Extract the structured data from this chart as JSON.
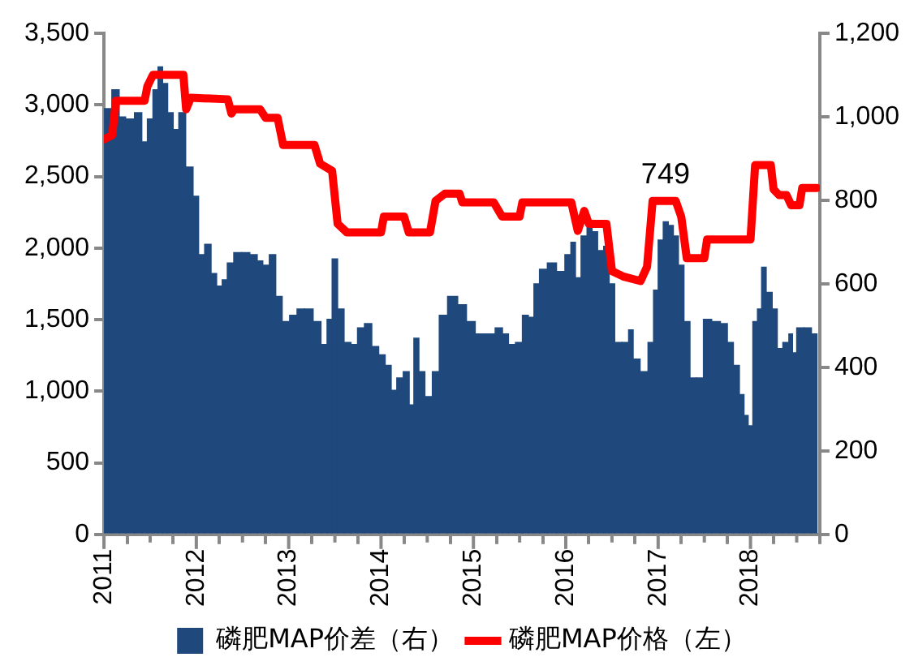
{
  "chart_data": {
    "type": "bar",
    "xlim": [
      2011,
      2018.75
    ],
    "xticks": [
      2011,
      {
        "value": 2011.5,
        "label": null
      },
      2012,
      {
        "value": 2012.5,
        "label": null
      },
      2013,
      {
        "value": 2013.5,
        "label": null
      },
      2014,
      {
        "value": 2014.5,
        "label": null
      },
      2015,
      {
        "value": 2015.5,
        "label": null
      },
      2016,
      {
        "value": 2016.5,
        "label": null
      },
      2017,
      {
        "value": 2017.5,
        "label": null
      },
      2018,
      {
        "value": 2018.5,
        "label": null
      }
    ],
    "ylim": [
      0,
      3500
    ],
    "yticks": [
      0,
      500,
      {
        "value": 1000,
        "label": "1,000"
      },
      {
        "value": 1500,
        "label": "1,500"
      },
      {
        "value": 2000,
        "label": "2,000"
      },
      {
        "value": 2500,
        "label": "2,500"
      },
      {
        "value": 3000,
        "label": "3,000"
      },
      {
        "value": 3500,
        "label": "3,500"
      }
    ],
    "y2lim": [
      0,
      1200
    ],
    "y2ticks": [
      0,
      200,
      400,
      600,
      800,
      {
        "value": 1000,
        "label": "1,000"
      },
      {
        "value": 1200,
        "label": "1,200"
      }
    ],
    "legend": "bottom",
    "grid": false,
    "annotations": [
      {
        "text": "749",
        "x": 2017.08,
        "y": 2330
      }
    ],
    "series": [
      {
        "name": "磷肥MAP价差（右）",
        "axis": "y2",
        "color": "#1f497d",
        "x": [
          2011.03,
          2011.14,
          2011.19,
          2011.28,
          2011.38,
          2011.44,
          2011.5,
          2011.56,
          2011.61,
          2011.66,
          2011.72,
          2011.78,
          2011.84,
          2011.93,
          2012.0,
          2012.05,
          2012.13,
          2012.19,
          2012.25,
          2012.31,
          2012.36,
          2012.45,
          2012.53,
          2012.63,
          2012.69,
          2012.75,
          2012.83,
          2012.89,
          2012.97,
          2013.05,
          2013.13,
          2013.22,
          2013.31,
          2013.39,
          2013.44,
          2013.5,
          2013.56,
          2013.64,
          2013.71,
          2013.78,
          2013.86,
          2013.94,
          2014.01,
          2014.08,
          2014.14,
          2014.2,
          2014.28,
          2014.33,
          2014.38,
          2014.44,
          2014.51,
          2014.6,
          2014.66,
          2014.78,
          2014.88,
          2014.97,
          2015.07,
          2015.19,
          2015.28,
          2015.35,
          2015.41,
          2015.5,
          2015.56,
          2015.63,
          2015.68,
          2015.75,
          2015.85,
          2015.95,
          2016.03,
          2016.08,
          2016.13,
          2016.2,
          2016.26,
          2016.31,
          2016.38,
          2016.44,
          2016.5,
          2016.56,
          2016.66,
          2016.7,
          2016.76,
          2016.85,
          2016.93,
          2016.97,
          2017.03,
          2017.08,
          2017.14,
          2017.19,
          2017.25,
          2017.31,
          2017.38,
          2017.45,
          2017.53,
          2017.63,
          2017.72,
          2017.78,
          2017.85,
          2017.91,
          2017.95,
          2018.0,
          2018.05,
          2018.1,
          2018.14,
          2018.2,
          2018.27,
          2018.31,
          2018.39,
          2018.44,
          2018.47,
          2018.53,
          2018.63,
          2018.69
        ],
        "values": [
          1020,
          1065,
          1000,
          995,
          1010,
          940,
          995,
          1065,
          1120,
          1080,
          1010,
          970,
          1010,
          880,
          810,
          670,
          695,
          625,
          595,
          610,
          650,
          675,
          675,
          670,
          655,
          645,
          670,
          570,
          510,
          525,
          540,
          540,
          510,
          455,
          515,
          660,
          540,
          460,
          455,
          495,
          505,
          450,
          430,
          405,
          345,
          375,
          390,
          310,
          470,
          390,
          330,
          390,
          525,
          570,
          550,
          510,
          480,
          480,
          495,
          480,
          455,
          460,
          525,
          520,
          600,
          635,
          650,
          630,
          670,
          700,
          615,
          715,
          735,
          725,
          680,
          690,
          600,
          460,
          460,
          490,
          420,
          390,
          460,
          585,
          705,
          749,
          740,
          715,
          645,
          510,
          375,
          375,
          515,
          510,
          505,
          460,
          405,
          335,
          285,
          260,
          510,
          540,
          640,
          580,
          540,
          445,
          460,
          480,
          435,
          495,
          495,
          480
        ]
      },
      {
        "name": "磷肥MAP价格（左）",
        "type": "line",
        "axis": "y",
        "color": "#ff0000",
        "x": [
          2011.0,
          2011.09,
          2011.13,
          2011.44,
          2011.47,
          2011.53,
          2011.86,
          2011.89,
          2011.94,
          2012.34,
          2012.38,
          2012.41,
          2012.69,
          2012.75,
          2012.88,
          2012.94,
          2013.28,
          2013.34,
          2013.47,
          2013.53,
          2013.63,
          2014.0,
          2014.03,
          2014.25,
          2014.3,
          2014.53,
          2014.59,
          2014.69,
          2014.85,
          2014.88,
          2015.22,
          2015.31,
          2015.5,
          2015.53,
          2016.06,
          2016.13,
          2016.2,
          2016.25,
          2016.44,
          2016.5,
          2016.63,
          2016.81,
          2016.88,
          2016.94,
          2017.19,
          2017.25,
          2017.31,
          2017.5,
          2017.53,
          2018.0,
          2018.05,
          2018.22,
          2018.25,
          2018.31,
          2018.39,
          2018.44,
          2018.53,
          2018.56,
          2018.72
        ],
        "values": [
          2760,
          2790,
          3030,
          3030,
          3130,
          3210,
          3210,
          2970,
          3050,
          3040,
          2940,
          2970,
          2970,
          2910,
          2910,
          2720,
          2720,
          2590,
          2540,
          2170,
          2110,
          2110,
          2220,
          2220,
          2110,
          2110,
          2330,
          2380,
          2380,
          2320,
          2320,
          2220,
          2220,
          2320,
          2320,
          2120,
          2260,
          2170,
          2170,
          1840,
          1800,
          1770,
          1870,
          2330,
          2330,
          2220,
          1930,
          1930,
          2060,
          2060,
          2580,
          2580,
          2410,
          2370,
          2370,
          2300,
          2300,
          2420,
          2420
        ]
      }
    ]
  }
}
